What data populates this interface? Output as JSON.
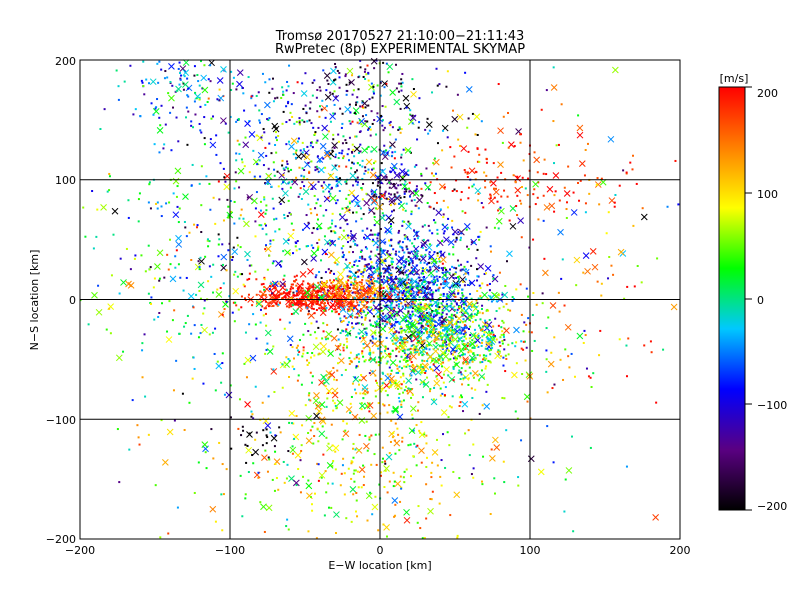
{
  "chart_data": {
    "type": "scatter",
    "title": "Tromsø 20170527 21:10:00−21:11:43",
    "subtitle": "RwPretec (8p) EXPERIMENTAL SKYMAP",
    "xlabel": "E−W location [km]",
    "ylabel": "N−S location [km]",
    "xlim": [
      -200,
      200
    ],
    "ylim": [
      -200,
      200
    ],
    "x_ticks": [
      "−200",
      "−100",
      "0",
      "100",
      "200"
    ],
    "y_ticks": [
      "200",
      "100",
      "0",
      "−100",
      "−200"
    ],
    "grid_x": [
      -100,
      0,
      100
    ],
    "grid_y": [
      -100,
      0,
      100
    ],
    "colorbar": {
      "unit_label": "[m/s]",
      "range": [
        -200,
        200
      ],
      "ticks": [
        "200",
        "100",
        "0",
        "−100",
        "−200"
      ],
      "colormap": [
        "#000000",
        "#5a0082",
        "#0000ff",
        "#00c8ff",
        "#00ff00",
        "#ffff00",
        "#ff8000",
        "#ff0000"
      ]
    },
    "markers": [
      "dot",
      "cross"
    ],
    "clusters": [
      {
        "x": 20,
        "y": 10,
        "sx": 25,
        "sy": 25,
        "n": 900,
        "v": -80,
        "vs": 60
      },
      {
        "x": 45,
        "y": -25,
        "sx": 25,
        "sy": 18,
        "n": 600,
        "v": 20,
        "vs": 60
      },
      {
        "x": 5,
        "y": -50,
        "sx": 35,
        "sy": 25,
        "n": 500,
        "v": 80,
        "vs": 60
      },
      {
        "x": -45,
        "y": 3,
        "sx": 20,
        "sy": 7,
        "n": 400,
        "v": 190,
        "vs": 20
      },
      {
        "x": -15,
        "y": 8,
        "sx": 12,
        "sy": 6,
        "n": 150,
        "v": 140,
        "vs": 30
      },
      {
        "x": -30,
        "y": 130,
        "sx": 45,
        "sy": 35,
        "n": 500,
        "v": -50,
        "vs": 100
      },
      {
        "x": 10,
        "y": 90,
        "sx": 10,
        "sy": 10,
        "n": 60,
        "v": -140,
        "vs": 30
      },
      {
        "x": -20,
        "y": 60,
        "sx": 45,
        "sy": 35,
        "n": 350,
        "v": -20,
        "vs": 80
      },
      {
        "x": -130,
        "y": 175,
        "sx": 25,
        "sy": 20,
        "n": 130,
        "v": -60,
        "vs": 60
      },
      {
        "x": -20,
        "y": 170,
        "sx": 25,
        "sy": 20,
        "n": 80,
        "v": -170,
        "vs": 25
      },
      {
        "x": 90,
        "y": 100,
        "sx": 40,
        "sy": 20,
        "n": 160,
        "v": 180,
        "vs": 30
      },
      {
        "x": -120,
        "y": 30,
        "sx": 40,
        "sy": 50,
        "n": 200,
        "v": 10,
        "vs": 70
      },
      {
        "x": -10,
        "y": -140,
        "sx": 45,
        "sy": 35,
        "n": 300,
        "v": 90,
        "vs": 50
      },
      {
        "x": 0,
        "y": 0,
        "sx": 110,
        "sy": 110,
        "n": 500,
        "v": 20,
        "vs": 110
      },
      {
        "x": -85,
        "y": -115,
        "sx": 10,
        "sy": 10,
        "n": 25,
        "v": -195,
        "vs": 8
      },
      {
        "x": 110,
        "y": -10,
        "sx": 40,
        "sy": 40,
        "n": 60,
        "v": 140,
        "vs": 50
      }
    ]
  }
}
